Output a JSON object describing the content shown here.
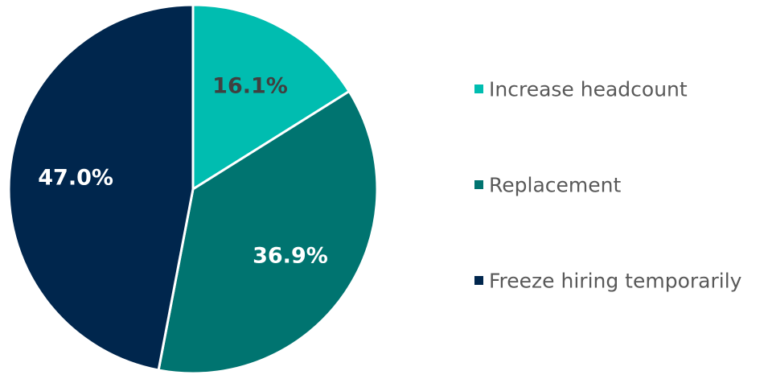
{
  "chart_data": {
    "type": "pie",
    "title": "",
    "legend_position": "right",
    "slices": [
      {
        "label": "Increase headcount",
        "value": 16.1,
        "display": "16.1%",
        "color": "#00BDB0",
        "label_color": "#404040"
      },
      {
        "label": "Replacement",
        "value": 36.9,
        "display": "36.9%",
        "color": "#007470",
        "label_color": "#ffffff"
      },
      {
        "label": "Freeze hiring temporarily",
        "value": 47.0,
        "display": "47.0%",
        "color": "#00264D",
        "label_color": "#ffffff"
      }
    ]
  }
}
